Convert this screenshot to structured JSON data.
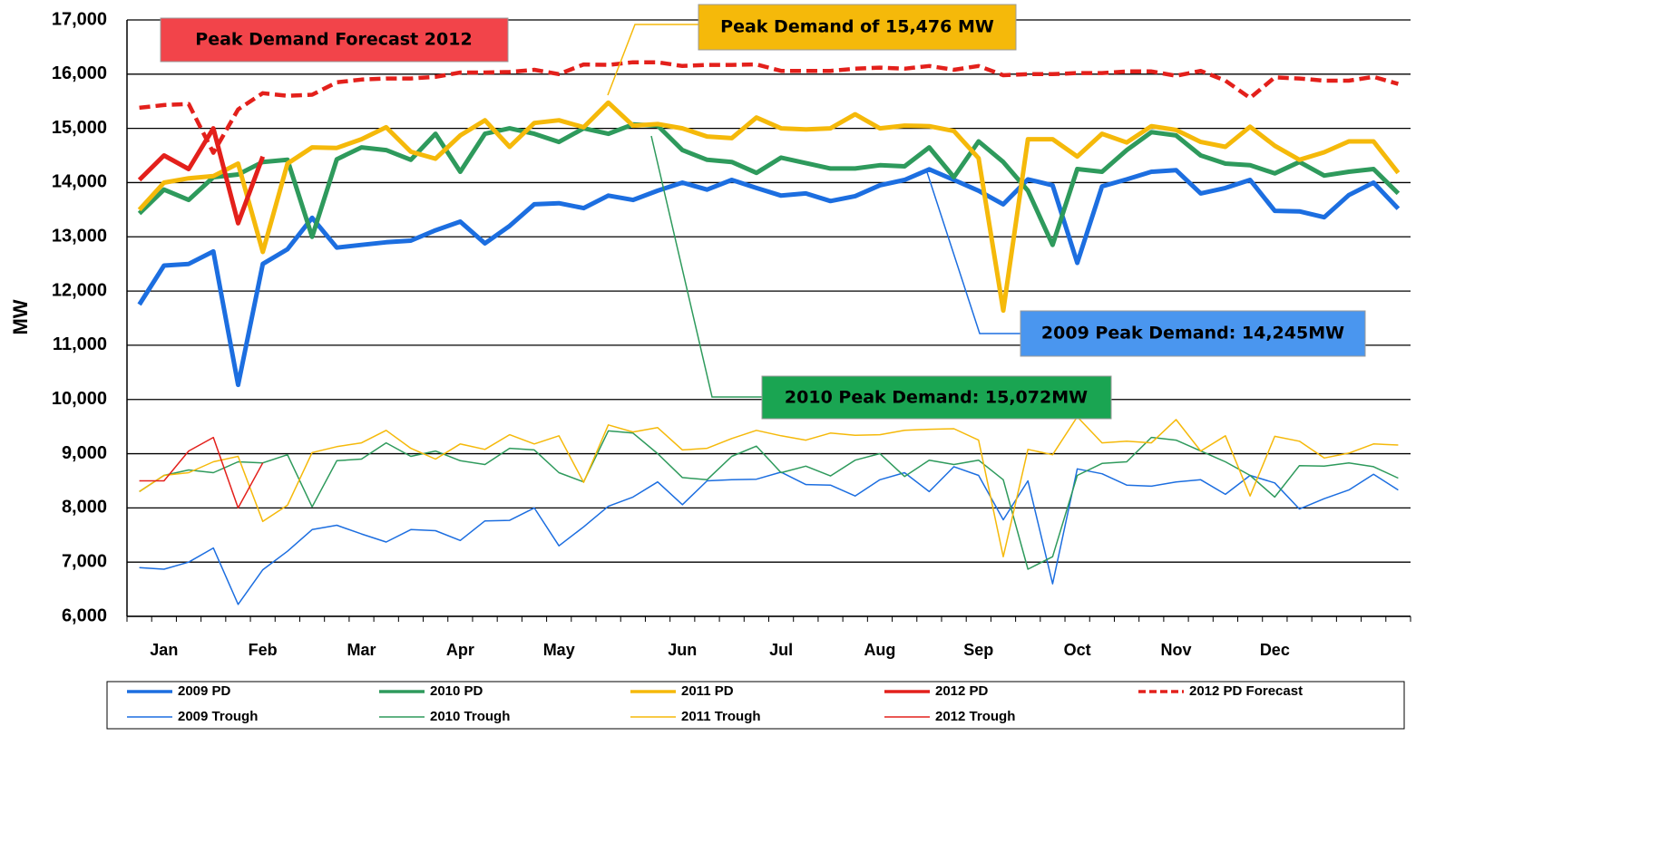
{
  "chart_data": {
    "type": "line",
    "y_label": "MW",
    "ylim": [
      6000,
      17000
    ],
    "yticks": [
      {
        "value": 6000,
        "label": "6,000"
      },
      {
        "value": 7000,
        "label": "7,000"
      },
      {
        "value": 8000,
        "label": "8,000"
      },
      {
        "value": 9000,
        "label": "9,000"
      },
      {
        "value": 10000,
        "label": "10,000"
      },
      {
        "value": 11000,
        "label": "11,000"
      },
      {
        "value": 12000,
        "label": "12,000"
      },
      {
        "value": 13000,
        "label": "13,000"
      },
      {
        "value": 14000,
        "label": "14,000"
      },
      {
        "value": 15000,
        "label": "15,000"
      },
      {
        "value": 16000,
        "label": "16,000"
      },
      {
        "value": 17000,
        "label": "17,000"
      }
    ],
    "grid": true,
    "categories": [
      null,
      "Jan",
      null,
      null,
      null,
      "Feb",
      null,
      null,
      null,
      "Mar",
      null,
      null,
      null,
      "Apr",
      null,
      null,
      null,
      "May",
      null,
      null,
      null,
      null,
      "Jun",
      null,
      null,
      null,
      "Jul",
      null,
      null,
      null,
      "Aug",
      null,
      null,
      null,
      "Sep",
      null,
      null,
      null,
      "Oct",
      null,
      null,
      null,
      "Nov",
      null,
      null,
      null,
      "Dec",
      null,
      null,
      null,
      null,
      null
    ],
    "series": [
      {
        "name": "2009 PD",
        "color": "#1c6ee0",
        "line_style": "thick",
        "values": [
          11750,
          12470,
          12500,
          12730,
          10270,
          12500,
          12770,
          13350,
          12800,
          12850,
          12900,
          12930,
          13120,
          13280,
          12880,
          13200,
          13600,
          13620,
          13530,
          13760,
          13680,
          13850,
          14000,
          13870,
          14050,
          13900,
          13760,
          13800,
          13660,
          13750,
          13950,
          14050,
          14245,
          14050,
          13850,
          13600,
          14060,
          13950,
          12520,
          13930,
          14060,
          14200,
          14230,
          13800,
          13900,
          14050,
          13480,
          13470,
          13360,
          13770,
          14000,
          13520
        ]
      },
      {
        "name": "2010 PD",
        "color": "#2e9a5c",
        "line_style": "thick",
        "values": [
          13430,
          13870,
          13680,
          14100,
          14150,
          14380,
          14420,
          13000,
          14430,
          14650,
          14600,
          14420,
          14900,
          14200,
          14900,
          15000,
          14900,
          14750,
          15000,
          14900,
          15072,
          15050,
          14600,
          14420,
          14380,
          14180,
          14460,
          14360,
          14260,
          14260,
          14320,
          14300,
          14650,
          14100,
          14760,
          14380,
          13850,
          12850,
          14250,
          14200,
          14600,
          14930,
          14870,
          14500,
          14350,
          14320,
          14170,
          14380,
          14130,
          14200,
          14250,
          13800
        ]
      },
      {
        "name": "2011 PD",
        "color": "#f5b90a",
        "line_style": "thick",
        "values": [
          13500,
          14000,
          14080,
          14120,
          14350,
          12720,
          14350,
          14650,
          14640,
          14800,
          15020,
          14570,
          14440,
          14870,
          15150,
          14660,
          15100,
          15150,
          15020,
          15476,
          15050,
          15080,
          15000,
          14850,
          14820,
          15200,
          15000,
          14980,
          15000,
          15260,
          15000,
          15050,
          15040,
          14950,
          14450,
          11640,
          14800,
          14800,
          14480,
          14900,
          14740,
          15040,
          14970,
          14750,
          14660,
          15030,
          14680,
          14420,
          14560,
          14760,
          14760,
          14180
        ]
      },
      {
        "name": "2012 PD",
        "color": "#e3201b",
        "line_style": "thick",
        "values": [
          14050,
          14500,
          14250,
          15000,
          13250,
          14480,
          null,
          null,
          null,
          null,
          null,
          null,
          null,
          null,
          null,
          null,
          null,
          null,
          null,
          null,
          null,
          null,
          null,
          null,
          null,
          null,
          null,
          null,
          null,
          null,
          null,
          null,
          null,
          null,
          null,
          null,
          null,
          null,
          null,
          null,
          null,
          null,
          null,
          null,
          null,
          null,
          null,
          null,
          null,
          null,
          null,
          null
        ]
      },
      {
        "name": "2012 PD Forecast",
        "color": "#e3201b",
        "line_style": "dashed",
        "values": [
          15380,
          15430,
          15450,
          14550,
          15350,
          15650,
          15600,
          15620,
          15850,
          15900,
          15920,
          15920,
          15950,
          16030,
          16030,
          16040,
          16080,
          16000,
          16180,
          16170,
          16220,
          16220,
          16150,
          16170,
          16170,
          16180,
          16060,
          16060,
          16060,
          16100,
          16120,
          16100,
          16150,
          16080,
          16150,
          15980,
          16000,
          16000,
          16020,
          16020,
          16050,
          16050,
          15970,
          16060,
          15880,
          15560,
          15940,
          15920,
          15880,
          15880,
          15950,
          15820
        ]
      },
      {
        "name": "2009 Trough",
        "color": "#1c6ee0",
        "line_style": "thin",
        "values": [
          6900,
          6870,
          7000,
          7260,
          6220,
          6860,
          7200,
          7600,
          7680,
          7520,
          7370,
          7600,
          7580,
          7400,
          7760,
          7770,
          8000,
          7300,
          7650,
          8030,
          8200,
          8480,
          8060,
          8500,
          8520,
          8530,
          8660,
          8430,
          8420,
          8220,
          8520,
          8650,
          8300,
          8760,
          8600,
          7780,
          8500,
          6600,
          8720,
          8630,
          8420,
          8400,
          8480,
          8520,
          8250,
          8600,
          8460,
          7980,
          8170,
          8330,
          8620,
          8330
        ]
      },
      {
        "name": "2010 Trough",
        "color": "#2e9a5c",
        "line_style": "thin",
        "values": [
          8300,
          8600,
          8700,
          8650,
          8850,
          8830,
          8980,
          8020,
          8870,
          8900,
          9200,
          8950,
          9050,
          8870,
          8800,
          9100,
          9070,
          8650,
          8480,
          9420,
          9380,
          9000,
          8560,
          8520,
          8950,
          9140,
          8650,
          8770,
          8590,
          8880,
          9000,
          8580,
          8880,
          8800,
          8880,
          8520,
          6870,
          7100,
          8600,
          8820,
          8850,
          9300,
          9250,
          9050,
          8850,
          8600,
          8200,
          8780,
          8770,
          8830,
          8760,
          8550
        ]
      },
      {
        "name": "2011 Trough",
        "color": "#f5b90a",
        "line_style": "thin",
        "values": [
          8300,
          8600,
          8650,
          8850,
          8950,
          7750,
          8050,
          9020,
          9130,
          9200,
          9430,
          9100,
          8900,
          9180,
          9080,
          9350,
          9180,
          9330,
          8470,
          9530,
          9400,
          9480,
          9070,
          9100,
          9280,
          9430,
          9330,
          9250,
          9380,
          9340,
          9350,
          9430,
          9450,
          9460,
          9250,
          7100,
          9080,
          8980,
          9680,
          9200,
          9230,
          9200,
          9630,
          9050,
          9330,
          8220,
          9320,
          9230,
          8920,
          9010,
          9180,
          9160
        ]
      },
      {
        "name": "2012 Trough",
        "color": "#e3201b",
        "line_style": "thin",
        "values": [
          8500,
          8500,
          9050,
          9300,
          8000,
          8830,
          null,
          null,
          null,
          null,
          null,
          null,
          null,
          null,
          null,
          null,
          null,
          null,
          null,
          null,
          null,
          null,
          null,
          null,
          null,
          null,
          null,
          null,
          null,
          null,
          null,
          null,
          null,
          null,
          null,
          null,
          null,
          null,
          null,
          null,
          null,
          null,
          null,
          null,
          null,
          null,
          null,
          null,
          null,
          null,
          null,
          null
        ]
      }
    ],
    "annotations": [
      {
        "text": "Peak Demand Forecast 2012"
      },
      {
        "text": "Peak Demand of 15,476 MW"
      },
      {
        "text": "2009 Peak Demand: 14,245MW"
      },
      {
        "text": "2010 Peak Demand: 15,072MW"
      }
    ]
  }
}
